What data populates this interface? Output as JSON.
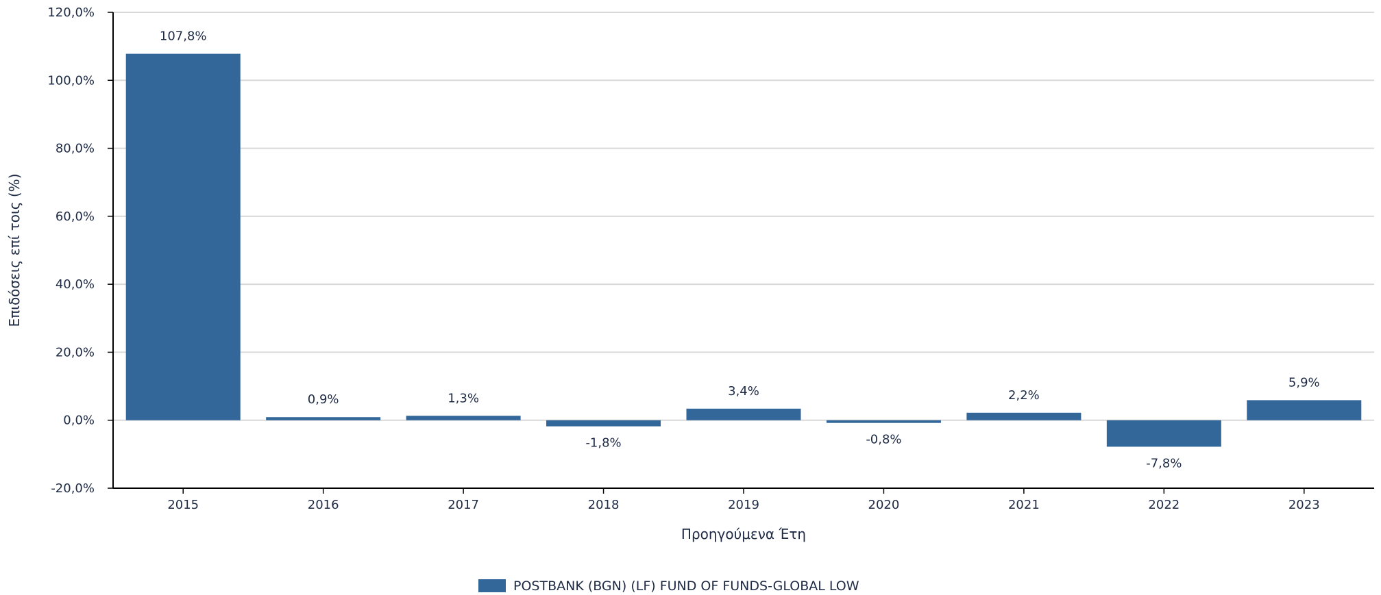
{
  "chart_data": {
    "type": "bar",
    "categories": [
      "2015",
      "2016",
      "2017",
      "2018",
      "2019",
      "2020",
      "2021",
      "2022",
      "2023"
    ],
    "series": [
      {
        "name": "POSTBANK (BGN) (LF) FUND OF FUNDS-GLOBAL LOW",
        "values": [
          107.8,
          0.9,
          1.3,
          -1.8,
          3.4,
          -0.8,
          2.2,
          -7.8,
          5.9
        ],
        "data_labels": [
          "107,8%",
          "0,9%",
          "1,3%",
          "-1,8%",
          "3,4%",
          "-0,8%",
          "2,2%",
          "-7,8%",
          "5,9%"
        ],
        "color": "#336699"
      }
    ],
    "xlabel": "Προηγούμενα Έτη",
    "ylabel": "Επιδόσεις επί τοις (%)",
    "ylim": [
      -20,
      120
    ],
    "yticks": [
      120,
      100,
      80,
      60,
      40,
      20,
      0,
      -20
    ],
    "ytick_labels": [
      "120,0%",
      "100,0%",
      "80,0%",
      "60,0%",
      "40,0%",
      "20,0%",
      "0,0%",
      "-20,0%"
    ],
    "grid": true,
    "legend_position": "bottom-center",
    "colors": {
      "bar": "#336699",
      "text": "#1e2a44",
      "grid": "#d9d9d9",
      "axis": "#000000"
    }
  }
}
